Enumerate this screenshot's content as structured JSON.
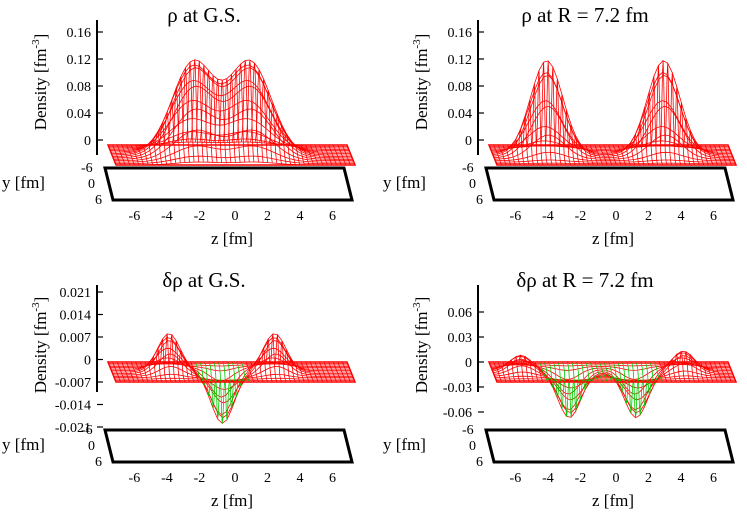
{
  "chart_data": [
    {
      "type": "surface3d",
      "title": "ρ at G.S.",
      "zlabel": "Density [fm-3]",
      "xlabel": "z [fm]",
      "ylabel": "y [fm]",
      "z_ticks": [
        "-6",
        "-4",
        "-2",
        "0",
        "2",
        "4",
        "6"
      ],
      "y_ticks": [
        "-6",
        "0",
        "6"
      ],
      "density_ticks": [
        "0",
        "0.04",
        "0.08",
        "0.12",
        "0.16"
      ],
      "density_range": [
        0,
        0.16
      ],
      "surface_color": "#ff0000",
      "negative_color": "#00cc00",
      "peaks": [
        {
          "z": -2.5,
          "value": 0.137
        },
        {
          "z": 1.0,
          "value": 0.137
        }
      ],
      "dip": {
        "z": -0.7,
        "value": 0.11
      }
    },
    {
      "type": "surface3d",
      "title": "ρ at R = 7.2 fm",
      "zlabel": "Density [fm-3]",
      "xlabel": "z [fm]",
      "ylabel": "y [fm]",
      "z_ticks": [
        "-6",
        "-4",
        "-2",
        "0",
        "2",
        "4",
        "6"
      ],
      "y_ticks": [
        "-6",
        "0",
        "6"
      ],
      "density_ticks": [
        "0",
        "0.04",
        "0.08",
        "0.12",
        "0.16"
      ],
      "density_range": [
        0,
        0.16
      ],
      "surface_color": "#ff0000",
      "negative_color": "#00cc00",
      "peaks": [
        {
          "z": -4.2,
          "value": 0.14
        },
        {
          "z": 3.0,
          "value": 0.14
        }
      ]
    },
    {
      "type": "surface3d",
      "title": "δρ at G.S.",
      "zlabel": "Density [fm-3]",
      "xlabel": "z [fm]",
      "ylabel": "y [fm]",
      "z_ticks": [
        "-6",
        "-4",
        "-2",
        "0",
        "2",
        "4",
        "6"
      ],
      "y_ticks": [
        "-6",
        "0",
        "6"
      ],
      "density_ticks": [
        "-0.021",
        "-0.014",
        "-0.007",
        "0",
        "0.007",
        "0.014",
        "0.021"
      ],
      "density_range": [
        -0.021,
        0.021
      ],
      "surface_color": "#ff0000",
      "negative_color": "#00cc00",
      "peaks": [
        {
          "z": -4.0,
          "value": 0.012
        },
        {
          "z": 2.5,
          "value": 0.012
        }
      ],
      "troughs": [
        {
          "z": -0.7,
          "value": -0.016
        }
      ]
    },
    {
      "type": "surface3d",
      "title": "δρ at R = 7.2 fm",
      "zlabel": "Density [fm-3]",
      "xlabel": "z [fm]",
      "ylabel": "y [fm]",
      "z_ticks": [
        "-6",
        "-4",
        "-2",
        "0",
        "2",
        "4",
        "6"
      ],
      "y_ticks": [
        "-6",
        "0",
        "6"
      ],
      "density_ticks": [
        "-0.06",
        "-0.03",
        "0",
        "0.03",
        "0.06"
      ],
      "density_range": [
        -0.06,
        0.06
      ],
      "surface_color": "#ff0000",
      "negative_color": "#00cc00",
      "peaks": [
        {
          "z": -5.8,
          "value": 0.02
        },
        {
          "z": 4.2,
          "value": 0.025
        }
      ],
      "troughs": [
        {
          "z": -2.8,
          "value": -0.055
        },
        {
          "z": 1.3,
          "value": -0.055
        }
      ]
    }
  ]
}
